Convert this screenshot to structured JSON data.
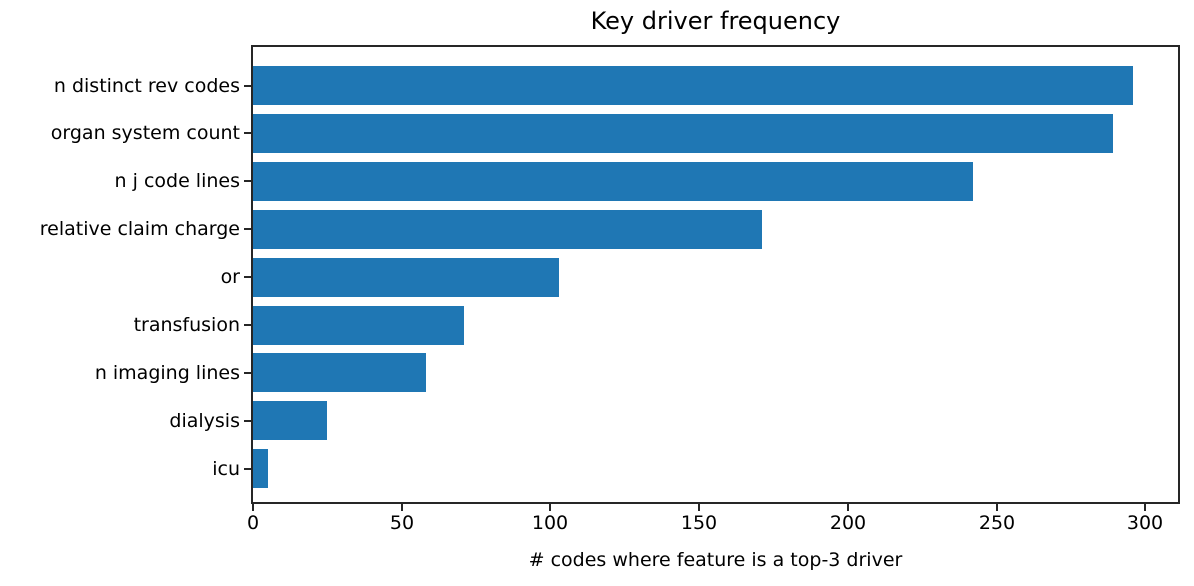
{
  "chart_data": {
    "type": "bar",
    "orientation": "horizontal",
    "title": "Key driver frequency",
    "xlabel": "# codes where feature is a top-3 driver",
    "ylabel": "",
    "categories": [
      "n distinct rev codes",
      "organ system count",
      "n j code lines",
      "relative claim charge",
      "or",
      "transfusion",
      "n imaging lines",
      "dialysis",
      "icu"
    ],
    "values": [
      296,
      289,
      242,
      171,
      103,
      71,
      58,
      25,
      5
    ],
    "xticks": [
      0,
      50,
      100,
      150,
      200,
      250,
      300
    ],
    "xlim": [
      0,
      311
    ],
    "grid": false,
    "legend": null,
    "colors": {
      "bar": "#1f77b4",
      "spine": "#262626",
      "text": "#000000",
      "background": "#ffffff"
    }
  }
}
